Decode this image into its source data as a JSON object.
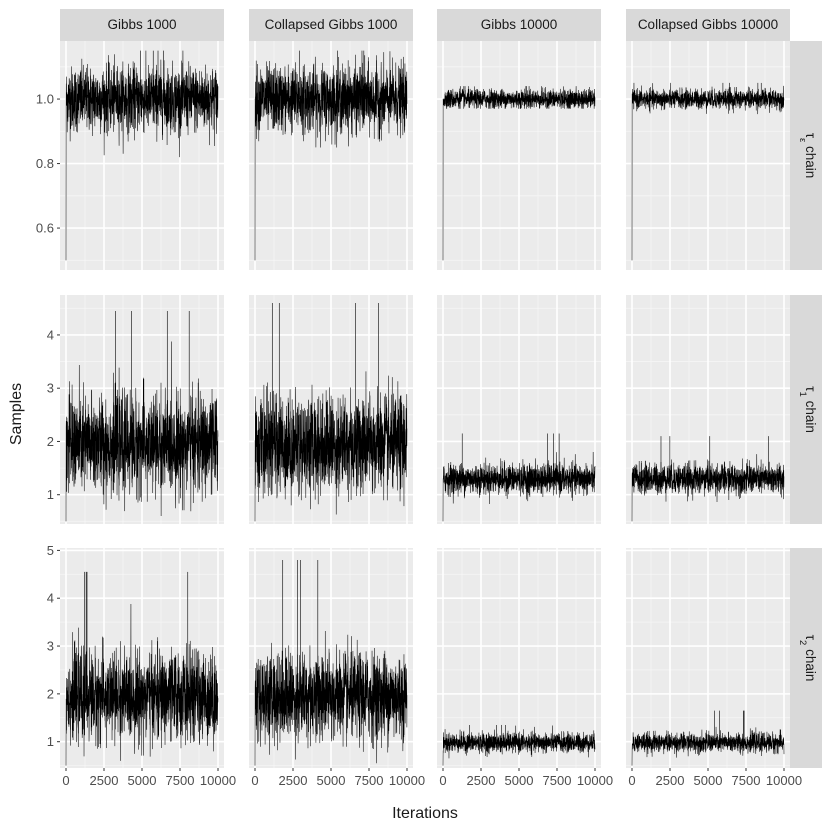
{
  "chart_data": {
    "type": "line",
    "xlabel": "Iterations",
    "ylabel": "Samples",
    "x_range": [
      0,
      10000
    ],
    "x_ticks": [
      0,
      2500,
      5000,
      7500,
      10000
    ],
    "x_tick_labels": [
      "0",
      "2500",
      "5000",
      "7500",
      "10000"
    ],
    "columns": [
      "Gibbs 1000",
      "Collapsed Gibbs 1000",
      "Gibbs 10000",
      "Collapsed Gibbs 10000"
    ],
    "rows": [
      {
        "label_main": "τ",
        "label_sub": "ε",
        "label_suffix": " chain",
        "ylim": [
          0.47,
          1.18
        ],
        "y_ticks": [
          0.6,
          0.8,
          1.0
        ],
        "y_tick_labels": [
          "0.6",
          "0.8",
          "1.0"
        ],
        "traces": [
          {
            "start": 0.5,
            "mean": 1.0,
            "sd": 0.05,
            "max": 1.15,
            "min": 0.82
          },
          {
            "start": 0.5,
            "mean": 1.0,
            "sd": 0.05,
            "max": 1.15,
            "min": 0.85
          },
          {
            "start": 0.5,
            "mean": 1.0,
            "sd": 0.015,
            "max": 1.04,
            "min": 0.97
          },
          {
            "start": 0.5,
            "mean": 1.0,
            "sd": 0.015,
            "max": 1.05,
            "min": 0.95
          }
        ]
      },
      {
        "label_main": "τ",
        "label_sub": "1",
        "label_suffix": " chain",
        "ylim": [
          0.45,
          4.75
        ],
        "y_ticks": [
          1,
          2,
          3,
          4
        ],
        "y_tick_labels": [
          "1",
          "2",
          "3",
          "4"
        ],
        "traces": [
          {
            "start": 0.5,
            "mean": 1.95,
            "sd": 0.45,
            "max": 4.45,
            "min": 0.6
          },
          {
            "start": 0.5,
            "mean": 1.95,
            "sd": 0.45,
            "max": 4.6,
            "min": 0.55
          },
          {
            "start": 0.5,
            "mean": 1.3,
            "sd": 0.14,
            "max": 2.15,
            "min": 0.75
          },
          {
            "start": 0.5,
            "mean": 1.3,
            "sd": 0.14,
            "max": 2.1,
            "min": 0.8
          }
        ]
      },
      {
        "label_main": "τ",
        "label_sub": "2",
        "label_suffix": " chain",
        "ylim": [
          0.45,
          5.05
        ],
        "y_ticks": [
          1,
          2,
          3,
          4,
          5
        ],
        "y_tick_labels": [
          "1",
          "2",
          "3",
          "4",
          "5"
        ],
        "traces": [
          {
            "start": 0.5,
            "mean": 1.95,
            "sd": 0.45,
            "max": 4.55,
            "min": 0.6
          },
          {
            "start": 0.5,
            "mean": 1.95,
            "sd": 0.45,
            "max": 4.8,
            "min": 0.55
          },
          {
            "start": 0.5,
            "mean": 0.98,
            "sd": 0.1,
            "max": 1.35,
            "min": 0.65
          },
          {
            "start": 0.5,
            "mean": 0.98,
            "sd": 0.1,
            "max": 1.65,
            "min": 0.55
          }
        ]
      }
    ],
    "grid": true,
    "colors": {
      "panel_bg": "#ebebeb",
      "grid_major": "#ffffff",
      "strip_bg": "#d9d9d9",
      "trace": "#000000",
      "text": "#1a1a1a",
      "tick_text": "#4d4d4d",
      "tick": "#333333"
    }
  }
}
